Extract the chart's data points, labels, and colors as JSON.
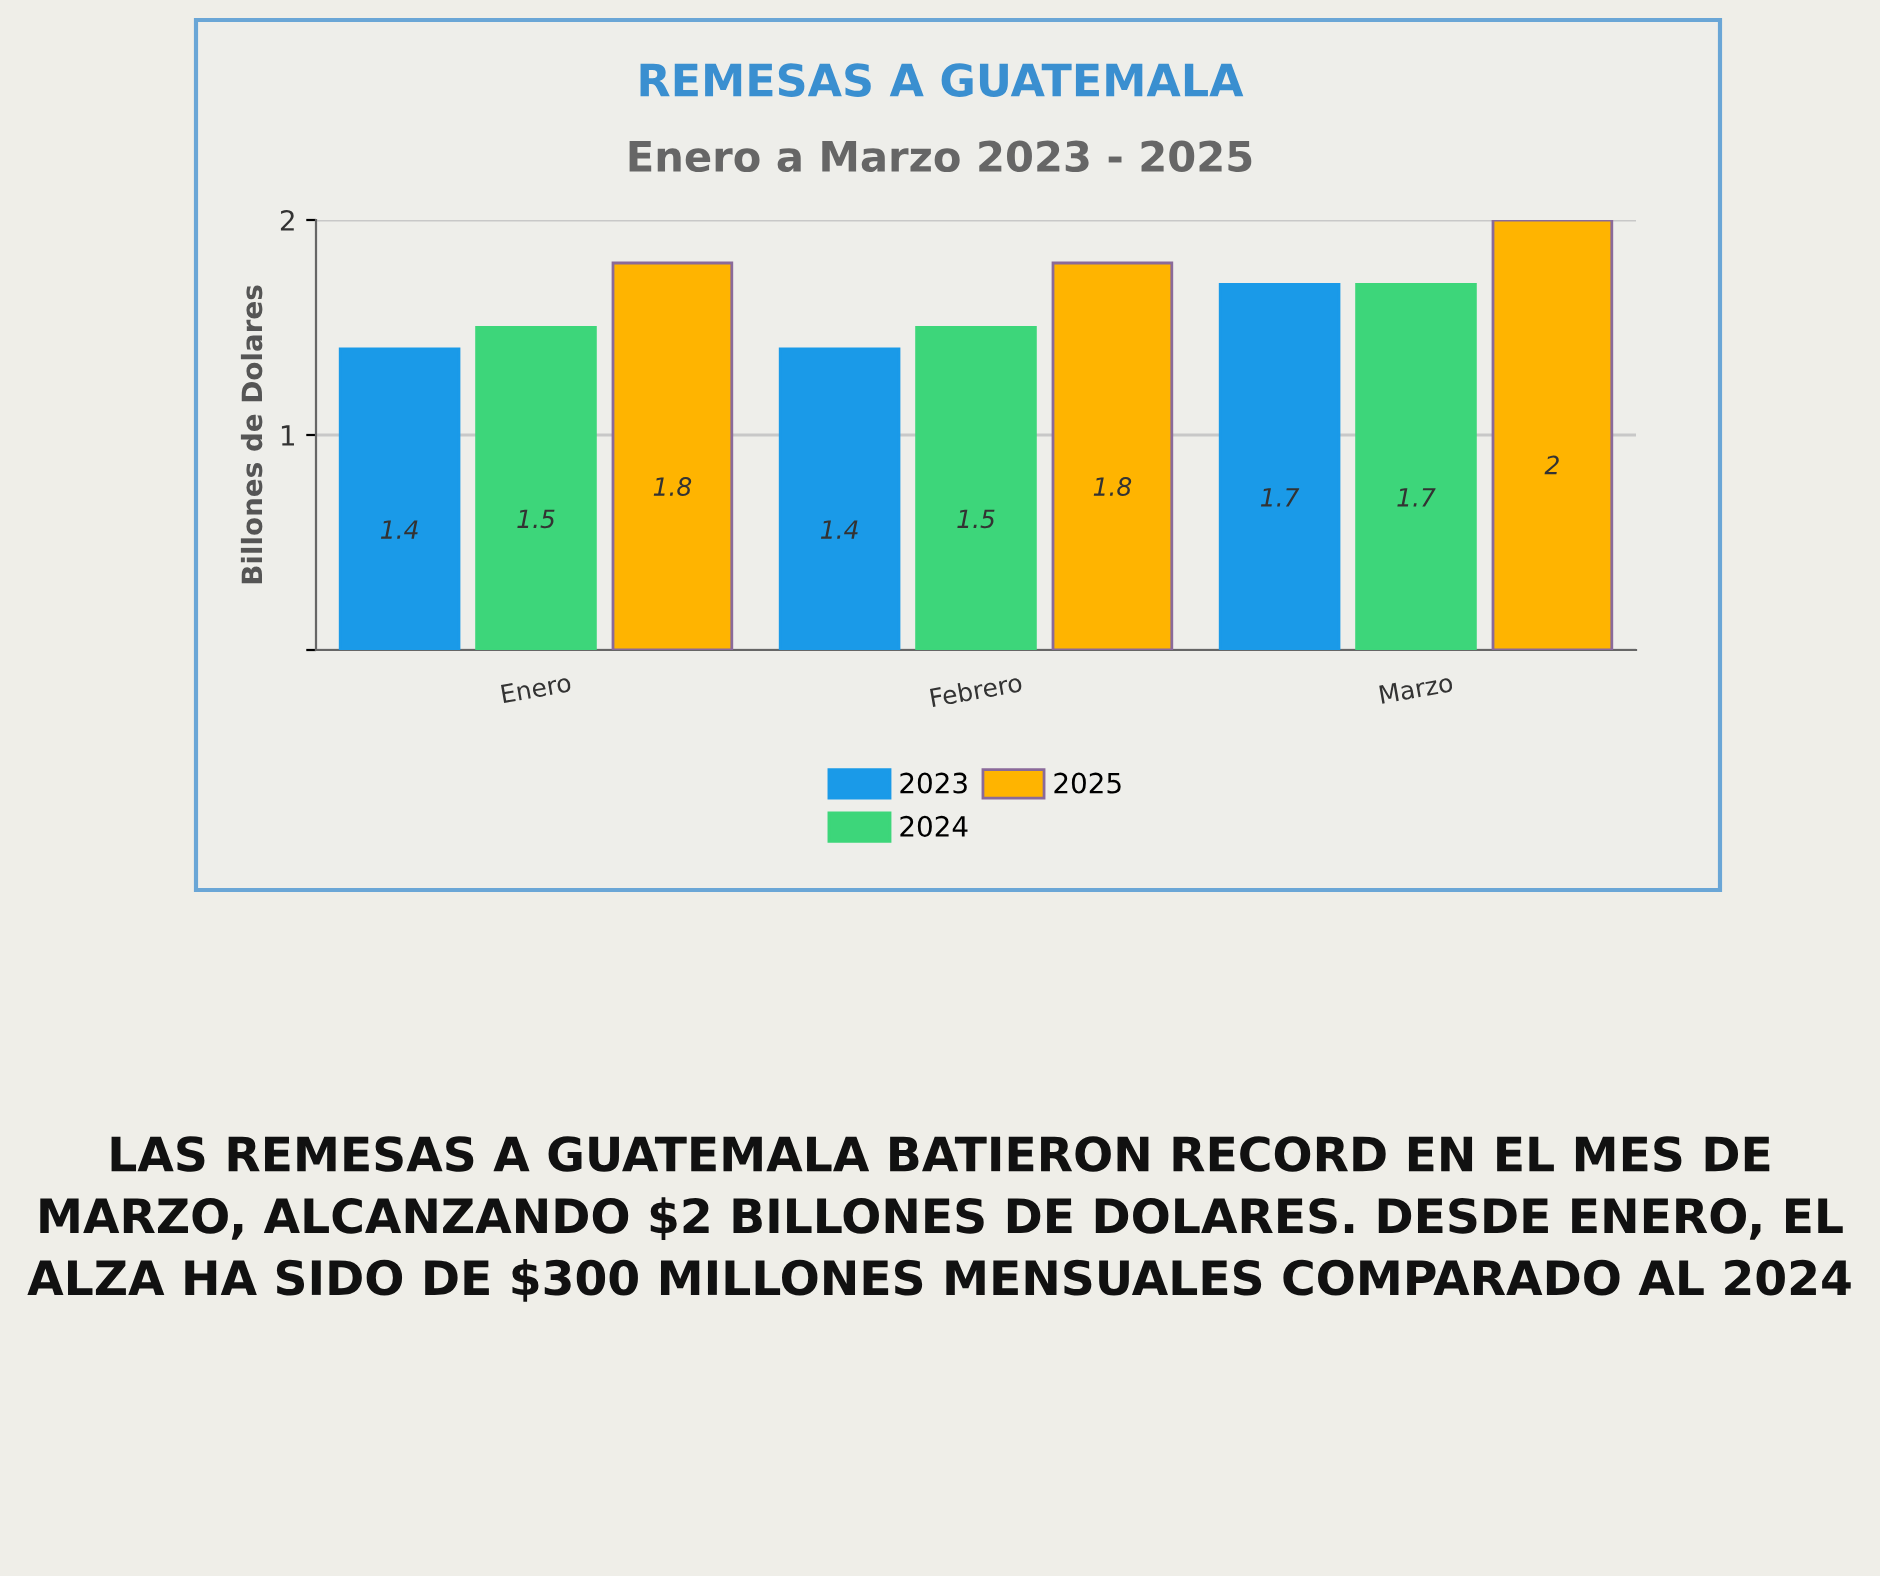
{
  "chart_data": {
    "type": "bar",
    "title": "REMESAS A GUATEMALA",
    "subtitle": "Enero a Marzo 2023 - 2025",
    "ylabel": "Billones de Dolares",
    "categories": [
      "Enero",
      "Febrero",
      "Marzo"
    ],
    "series": [
      {
        "name": "2023",
        "color": "#1a9ae8",
        "values": [
          1.4,
          1.4,
          1.7
        ]
      },
      {
        "name": "2024",
        "color": "#3dd67a",
        "values": [
          1.5,
          1.5,
          1.7
        ]
      },
      {
        "name": "2025",
        "color": "#ffb400",
        "values": [
          1.8,
          1.8,
          2
        ]
      }
    ],
    "ylim": [
      0,
      2
    ],
    "yticks": [
      {
        "value": 0,
        "label": null
      },
      1,
      2
    ],
    "grid": "y",
    "legend": "bottom",
    "data_labels": true,
    "annotations": [
      "LAS REMESAS A GUATEMALA BATIERON RECORD EN EL MES DE MARZO, ALCANZANDO $2 BILLONES DE DOLARES. DESDE ENERO, EL ALZA HA SIDO DE $300 MILLONES MENSUALES COMPARADO AL 2024"
    ]
  }
}
